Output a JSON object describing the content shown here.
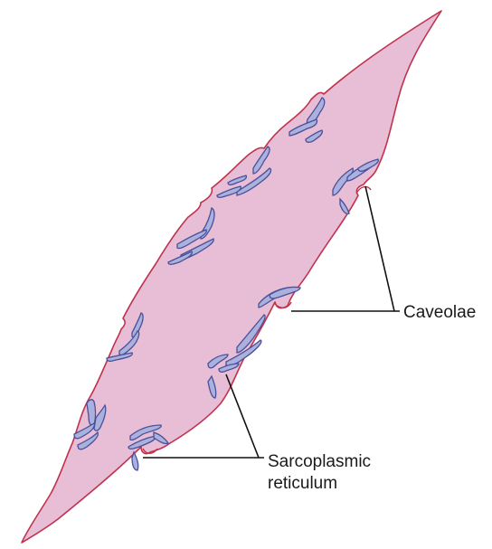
{
  "labels": {
    "caveolae": "Caveolae",
    "sr_line1": "Sarcoplasmic",
    "sr_line2": "reticulum"
  },
  "colors": {
    "cell_fill": "#e8bdd6",
    "cell_outline": "#c0334d",
    "sr_fill": "#a9b1dc",
    "sr_outline": "#4a4f99",
    "leader_line": "#111111"
  }
}
